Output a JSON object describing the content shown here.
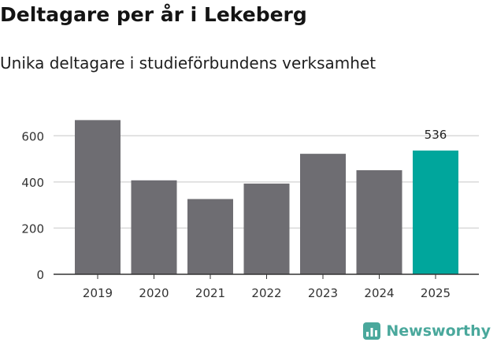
{
  "header": {
    "title": "Deltagare per år i Lekeberg",
    "subtitle": "Unika deltagare i studieförbundens verksamhet"
  },
  "brand": {
    "name": "Newsworthy",
    "color": "#4aa89c"
  },
  "colors": {
    "bar_default": "#6e6d72",
    "bar_highlight": "#00a69c",
    "gridline": "#d9d9d9",
    "axis": "#333333"
  },
  "chart_data": {
    "type": "bar",
    "title": "Deltagare per år i Lekeberg",
    "subtitle": "Unika deltagare i studieförbundens verksamhet",
    "xlabel": "",
    "ylabel": "",
    "categories": [
      "2019",
      "2020",
      "2021",
      "2022",
      "2023",
      "2024",
      "2025"
    ],
    "values": [
      668,
      407,
      326,
      393,
      522,
      451,
      536
    ],
    "highlight_index": 6,
    "data_labels": [
      {
        "index": 6,
        "text": "536"
      }
    ],
    "ylim": [
      0,
      700
    ],
    "yticks": [
      0,
      200,
      400,
      600
    ],
    "grid": true,
    "legend": "none"
  }
}
